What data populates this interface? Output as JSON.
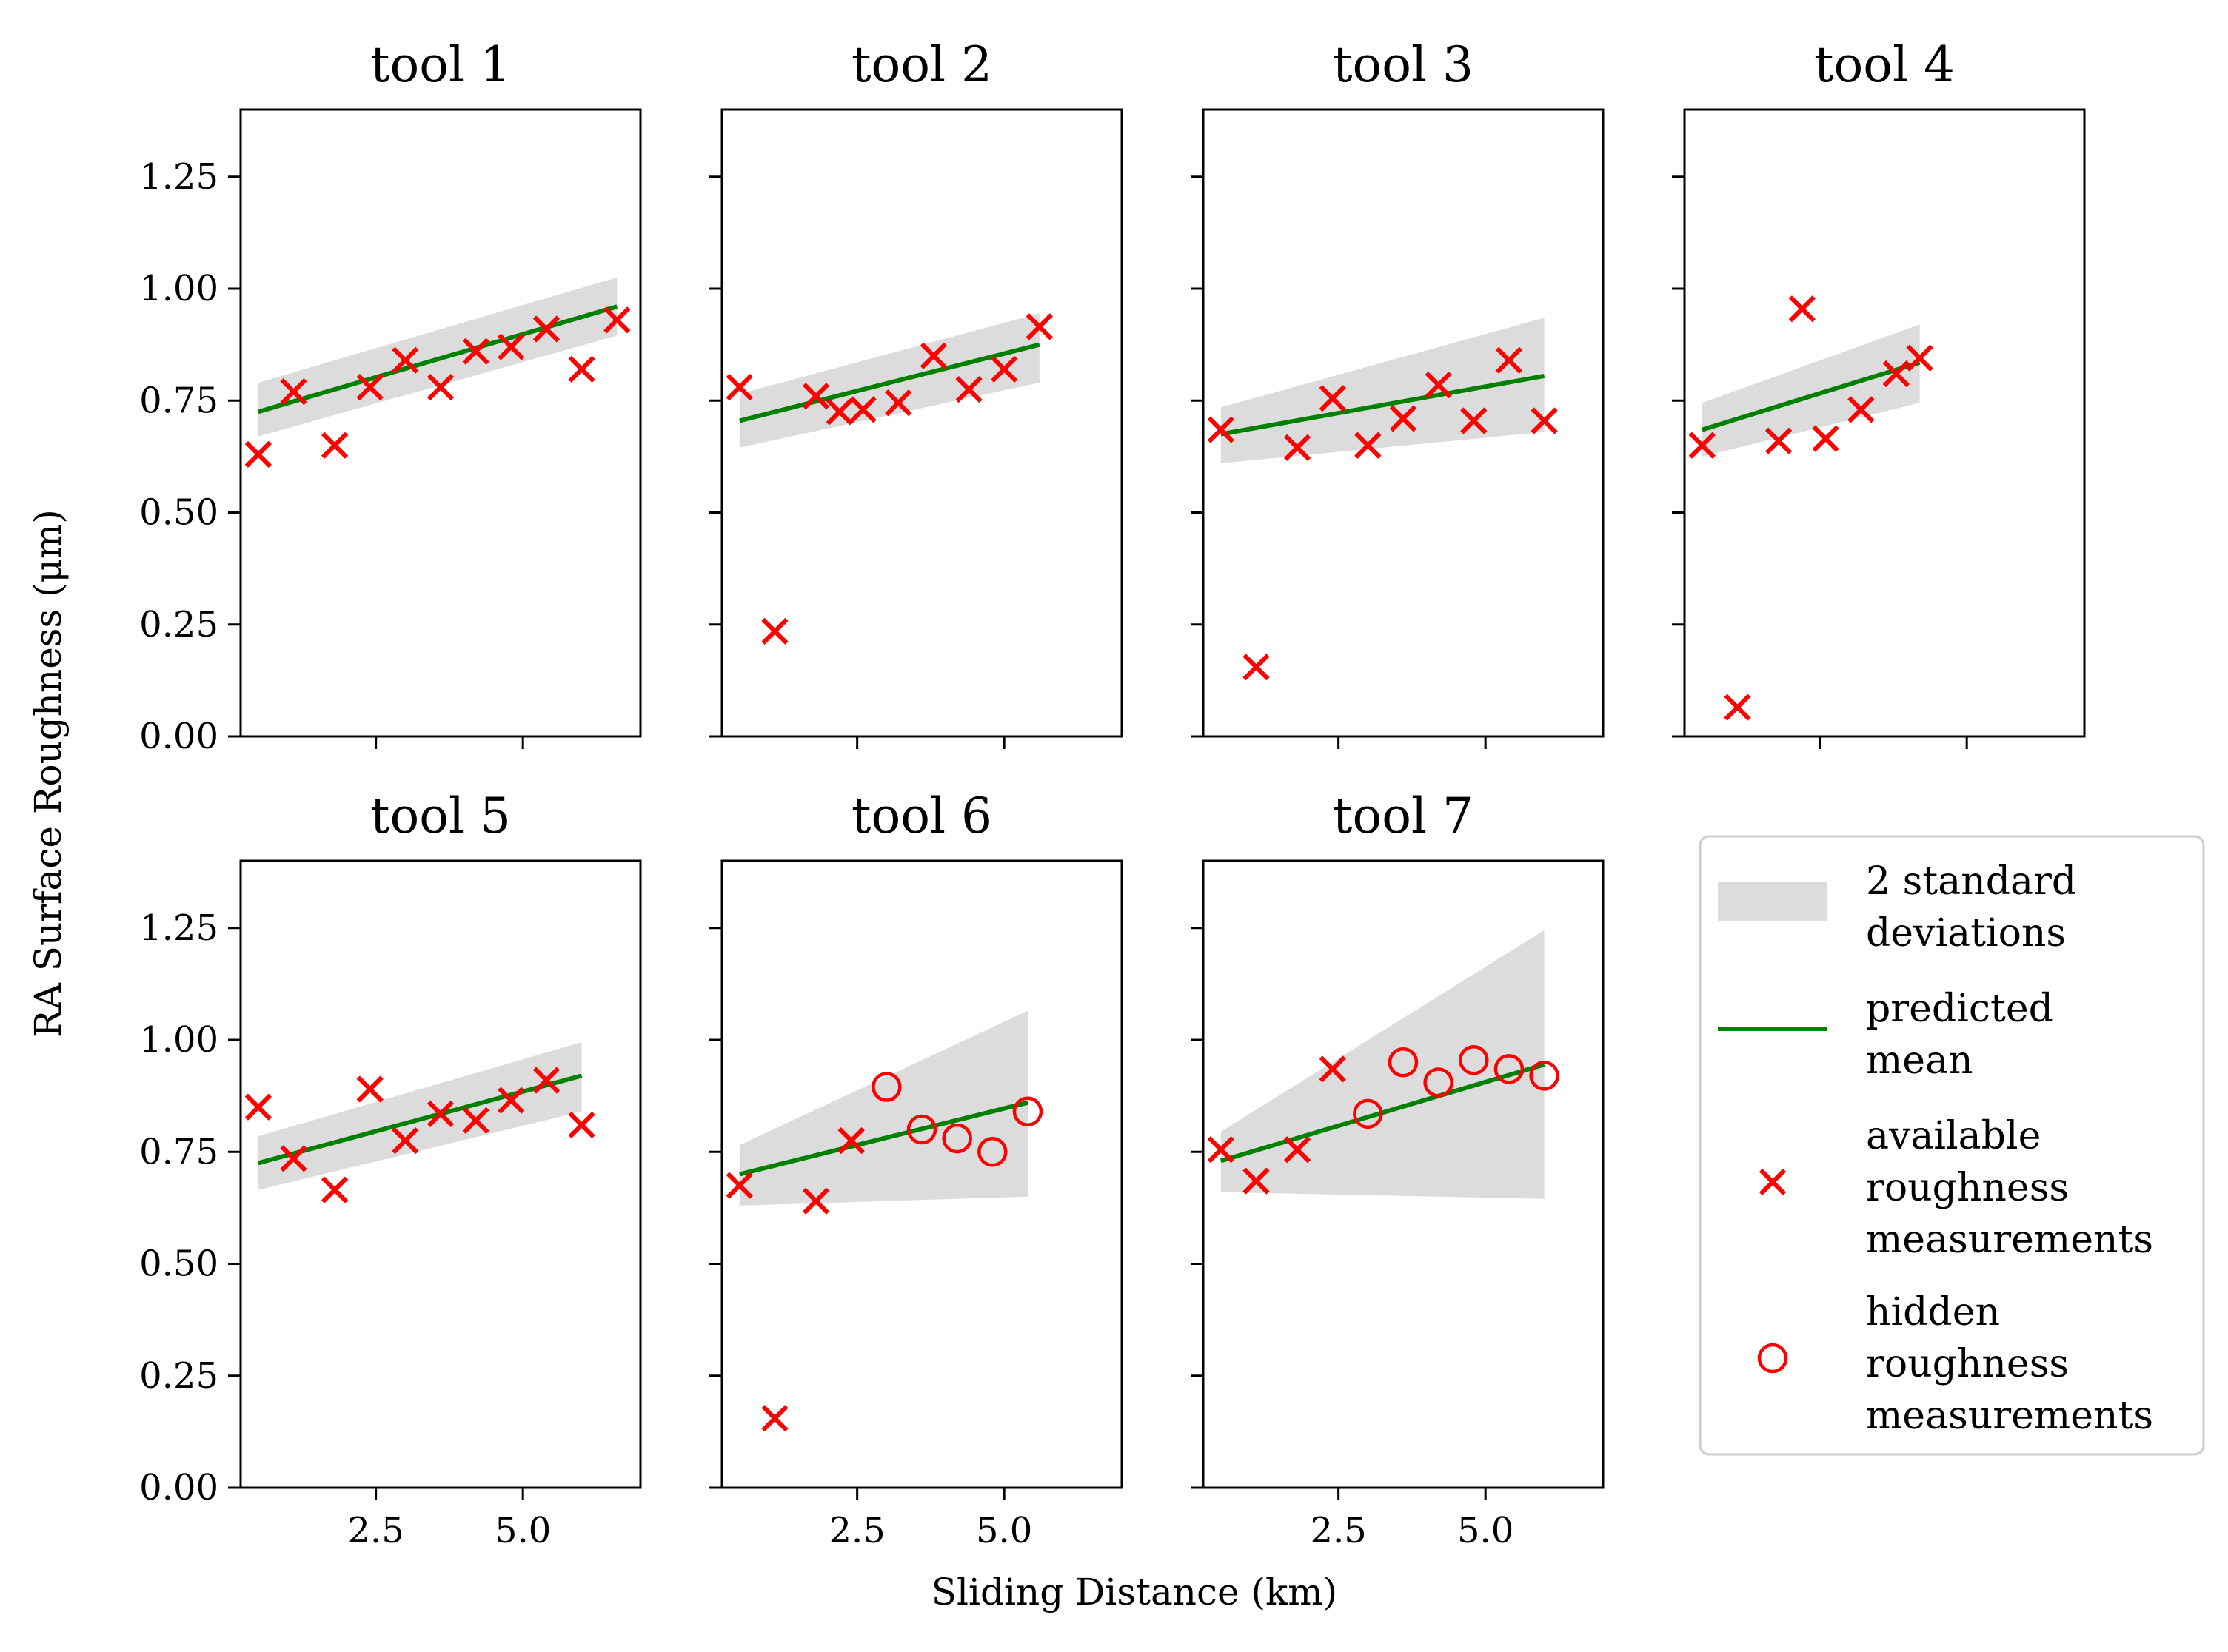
{
  "chart_data": {
    "type": "scatter",
    "xlabel": "Sliding Distance (km)",
    "ylabel": "RA Surface Roughness (μm)",
    "xlim": [
      0.2,
      7.0
    ],
    "ylim": [
      0.0,
      1.4
    ],
    "xticks": [
      2.5,
      5.0
    ],
    "xtick_labels": [
      "2.5",
      "5.0"
    ],
    "yticks": [
      0.0,
      0.25,
      0.5,
      0.75,
      1.0,
      1.25
    ],
    "ytick_labels": [
      "0.00",
      "0.25",
      "0.50",
      "0.75",
      "1.00",
      "1.25"
    ],
    "colors": {
      "measurement": "#ff0000",
      "mean": "#008000",
      "band": "#dcdcdc"
    },
    "legend": {
      "position": "right",
      "entries": [
        {
          "kind": "band",
          "lines": [
            "2 standard",
            "deviations"
          ]
        },
        {
          "kind": "line",
          "lines": [
            "predicted",
            "mean"
          ]
        },
        {
          "kind": "cross",
          "lines": [
            "available",
            "roughness",
            "measurements"
          ]
        },
        {
          "kind": "circle",
          "lines": [
            "hidden",
            "roughness",
            "measurements"
          ]
        }
      ]
    },
    "panels": [
      {
        "title": "tool 1",
        "available": [
          [
            0.5,
            0.63
          ],
          [
            1.1,
            0.77
          ],
          [
            1.8,
            0.65
          ],
          [
            2.4,
            0.78
          ],
          [
            3.0,
            0.84
          ],
          [
            3.6,
            0.78
          ],
          [
            4.2,
            0.86
          ],
          [
            4.8,
            0.87
          ],
          [
            5.4,
            0.91
          ],
          [
            6.0,
            0.82
          ],
          [
            6.6,
            0.93
          ]
        ],
        "hidden": [],
        "mean": [
          [
            0.5,
            0.725
          ],
          [
            6.6,
            0.96
          ]
        ],
        "band": {
          "x": [
            0.5,
            6.6
          ],
          "upper": [
            0.79,
            1.025
          ],
          "lower": [
            0.67,
            0.895
          ]
        }
      },
      {
        "title": "tool 2",
        "available": [
          [
            0.5,
            0.78
          ],
          [
            1.1,
            0.235
          ],
          [
            1.8,
            0.76
          ],
          [
            2.2,
            0.725
          ],
          [
            2.6,
            0.73
          ],
          [
            3.2,
            0.745
          ],
          [
            3.8,
            0.85
          ],
          [
            4.4,
            0.775
          ],
          [
            5.0,
            0.82
          ],
          [
            5.6,
            0.915
          ]
        ],
        "hidden": [],
        "mean": [
          [
            0.5,
            0.705
          ],
          [
            5.6,
            0.875
          ]
        ],
        "band": {
          "x": [
            0.5,
            5.6
          ],
          "upper": [
            0.765,
            0.945
          ],
          "lower": [
            0.645,
            0.79
          ]
        }
      },
      {
        "title": "tool 3",
        "available": [
          [
            0.5,
            0.685
          ],
          [
            1.1,
            0.155
          ],
          [
            1.8,
            0.645
          ],
          [
            2.4,
            0.755
          ],
          [
            3.0,
            0.65
          ],
          [
            3.6,
            0.71
          ],
          [
            4.2,
            0.785
          ],
          [
            4.8,
            0.705
          ],
          [
            5.4,
            0.84
          ],
          [
            6.0,
            0.705
          ]
        ],
        "hidden": [],
        "mean": [
          [
            0.5,
            0.675
          ],
          [
            6.0,
            0.805
          ]
        ],
        "band": {
          "x": [
            0.5,
            6.0
          ],
          "upper": [
            0.735,
            0.935
          ],
          "lower": [
            0.61,
            0.68
          ]
        }
      },
      {
        "title": "tool 4",
        "available": [
          [
            0.5,
            0.65
          ],
          [
            1.1,
            0.065
          ],
          [
            1.8,
            0.66
          ],
          [
            2.2,
            0.955
          ],
          [
            2.6,
            0.665
          ],
          [
            3.2,
            0.73
          ],
          [
            3.8,
            0.81
          ],
          [
            4.2,
            0.845
          ]
        ],
        "hidden": [],
        "mean": [
          [
            0.5,
            0.685
          ],
          [
            4.2,
            0.835
          ]
        ],
        "band": {
          "x": [
            0.5,
            4.2
          ],
          "upper": [
            0.745,
            0.92
          ],
          "lower": [
            0.625,
            0.745
          ]
        }
      },
      {
        "title": "tool 5",
        "available": [
          [
            0.5,
            0.85
          ],
          [
            1.1,
            0.735
          ],
          [
            1.8,
            0.665
          ],
          [
            2.4,
            0.89
          ],
          [
            3.0,
            0.775
          ],
          [
            3.6,
            0.835
          ],
          [
            4.2,
            0.82
          ],
          [
            4.8,
            0.865
          ],
          [
            5.4,
            0.91
          ],
          [
            6.0,
            0.81
          ]
        ],
        "hidden": [],
        "mean": [
          [
            0.5,
            0.725
          ],
          [
            6.0,
            0.92
          ]
        ],
        "band": {
          "x": [
            0.5,
            6.0
          ],
          "upper": [
            0.785,
            0.995
          ],
          "lower": [
            0.665,
            0.84
          ]
        }
      },
      {
        "title": "tool 6",
        "available": [
          [
            0.5,
            0.675
          ],
          [
            1.1,
            0.155
          ],
          [
            1.8,
            0.64
          ],
          [
            2.4,
            0.775
          ]
        ],
        "hidden": [
          [
            3.0,
            0.895
          ],
          [
            3.6,
            0.8
          ],
          [
            4.2,
            0.78
          ],
          [
            4.8,
            0.75
          ],
          [
            5.4,
            0.84
          ]
        ],
        "mean": [
          [
            0.5,
            0.7
          ],
          [
            5.4,
            0.86
          ]
        ],
        "band": {
          "x": [
            0.5,
            5.4
          ],
          "upper": [
            0.765,
            1.065
          ],
          "lower": [
            0.63,
            0.65
          ]
        }
      },
      {
        "title": "tool 7",
        "available": [
          [
            0.5,
            0.755
          ],
          [
            1.1,
            0.685
          ],
          [
            1.8,
            0.755
          ],
          [
            2.4,
            0.935
          ]
        ],
        "hidden": [
          [
            3.0,
            0.835
          ],
          [
            3.6,
            0.95
          ],
          [
            4.2,
            0.905
          ],
          [
            4.8,
            0.955
          ],
          [
            5.4,
            0.935
          ],
          [
            6.0,
            0.92
          ]
        ],
        "mean": [
          [
            0.5,
            0.73
          ],
          [
            6.0,
            0.945
          ]
        ],
        "band": {
          "x": [
            0.5,
            6.0
          ],
          "upper": [
            0.795,
            1.245
          ],
          "lower": [
            0.66,
            0.645
          ]
        }
      }
    ]
  }
}
